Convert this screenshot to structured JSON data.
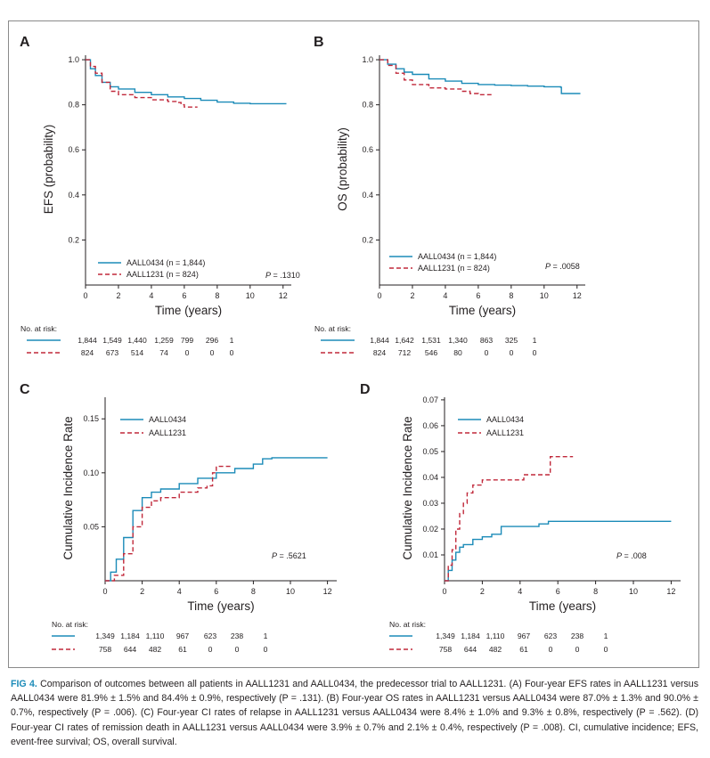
{
  "colors": {
    "series1": "#1b8bb8",
    "series2": "#c0283a",
    "text": "#231f20",
    "caption_label": "#1b8bb8"
  },
  "risk_label": "No. at risk:",
  "chart_data": [
    {
      "panel": "A",
      "type": "line",
      "xlabel": "Time (years)",
      "ylabel": "EFS (probability)",
      "xlim": [
        0,
        12.5
      ],
      "ylim": [
        0,
        1.02
      ],
      "xticks": [
        0,
        2,
        4,
        6,
        8,
        10,
        12
      ],
      "xtick_labels": [
        "0",
        "2",
        "4",
        "6",
        "8",
        "10",
        "12"
      ],
      "yticks": [
        0.2,
        0.4,
        0.6,
        0.8,
        1.0
      ],
      "ytick_labels": [
        "0.2",
        "0.4",
        "0.6",
        "0.8",
        "1.0"
      ],
      "p_value": ".1310",
      "series": [
        {
          "name": "AALL0434 (n = 1,844)",
          "style": "solid",
          "points": [
            [
              0,
              1.0
            ],
            [
              0.3,
              0.96
            ],
            [
              0.6,
              0.93
            ],
            [
              1,
              0.9
            ],
            [
              1.5,
              0.88
            ],
            [
              2,
              0.87
            ],
            [
              3,
              0.855
            ],
            [
              4,
              0.845
            ],
            [
              5,
              0.835
            ],
            [
              6,
              0.828
            ],
            [
              7,
              0.82
            ],
            [
              8,
              0.812
            ],
            [
              9,
              0.807
            ],
            [
              10,
              0.805
            ],
            [
              11,
              0.805
            ],
            [
              12.2,
              0.805
            ]
          ]
        },
        {
          "name": "AALL1231 (n = 824)",
          "style": "dashed",
          "points": [
            [
              0,
              1.0
            ],
            [
              0.3,
              0.97
            ],
            [
              0.6,
              0.94
            ],
            [
              1,
              0.9
            ],
            [
              1.5,
              0.86
            ],
            [
              2,
              0.845
            ],
            [
              3,
              0.832
            ],
            [
              4,
              0.822
            ],
            [
              5,
              0.815
            ],
            [
              5.5,
              0.81
            ],
            [
              5.8,
              0.8
            ],
            [
              6,
              0.79
            ],
            [
              6.8,
              0.79
            ]
          ]
        }
      ],
      "at_risk": {
        "series": [
          {
            "name": "AALL0434",
            "counts": [
              "1,844",
              "1,549",
              "1,440",
              "1,259",
              "799",
              "296",
              "1"
            ]
          },
          {
            "name": "AALL1231",
            "counts": [
              "824",
              "673",
              "514",
              "74",
              "0",
              "0",
              "0"
            ]
          }
        ]
      }
    },
    {
      "panel": "B",
      "type": "line",
      "xlabel": "Time (years)",
      "ylabel": "OS (probability)",
      "xlim": [
        0,
        12.5
      ],
      "ylim": [
        0,
        1.02
      ],
      "xticks": [
        0,
        2,
        4,
        6,
        8,
        10,
        12
      ],
      "xtick_labels": [
        "0",
        "2",
        "4",
        "6",
        "8",
        "10",
        "12"
      ],
      "yticks": [
        0.2,
        0.4,
        0.6,
        0.8,
        1.0
      ],
      "ytick_labels": [
        "0.2",
        "0.4",
        "0.6",
        "0.8",
        "1.0"
      ],
      "p_value": ".0058",
      "series": [
        {
          "name": "AALL0434 (n = 1,844)",
          "style": "solid",
          "points": [
            [
              0,
              1.0
            ],
            [
              0.5,
              0.98
            ],
            [
              1,
              0.96
            ],
            [
              1.5,
              0.945
            ],
            [
              2,
              0.935
            ],
            [
              3,
              0.915
            ],
            [
              4,
              0.905
            ],
            [
              5,
              0.895
            ],
            [
              6,
              0.89
            ],
            [
              7,
              0.887
            ],
            [
              8,
              0.885
            ],
            [
              9,
              0.883
            ],
            [
              10,
              0.88
            ],
            [
              11,
              0.878
            ],
            [
              11.05,
              0.85
            ],
            [
              12.2,
              0.85
            ]
          ]
        },
        {
          "name": "AALL1231 (n = 824)",
          "style": "dashed",
          "points": [
            [
              0,
              1.0
            ],
            [
              0.5,
              0.975
            ],
            [
              1,
              0.94
            ],
            [
              1.5,
              0.91
            ],
            [
              2,
              0.89
            ],
            [
              3,
              0.875
            ],
            [
              4,
              0.87
            ],
            [
              5,
              0.86
            ],
            [
              5.5,
              0.85
            ],
            [
              6,
              0.845
            ],
            [
              6.8,
              0.845
            ]
          ]
        }
      ],
      "at_risk": {
        "series": [
          {
            "name": "AALL0434",
            "counts": [
              "1,844",
              "1,642",
              "1,531",
              "1,340",
              "863",
              "325",
              "1"
            ]
          },
          {
            "name": "AALL1231",
            "counts": [
              "824",
              "712",
              "546",
              "80",
              "0",
              "0",
              "0"
            ]
          }
        ]
      }
    },
    {
      "panel": "C",
      "type": "line",
      "xlabel": "Time (years)",
      "ylabel": "Cumulative Incidence Rate",
      "xlim": [
        0,
        12.5
      ],
      "ylim": [
        0,
        0.17
      ],
      "xticks": [
        0,
        2,
        4,
        6,
        8,
        10,
        12
      ],
      "xtick_labels": [
        "0",
        "2",
        "4",
        "6",
        "8",
        "10",
        "12"
      ],
      "yticks": [
        0.05,
        0.1,
        0.15
      ],
      "ytick_labels": [
        "0.05",
        "0.10",
        "0.15"
      ],
      "p_value": ".5621",
      "series": [
        {
          "name": "AALL0434",
          "style": "solid",
          "points": [
            [
              0,
              0
            ],
            [
              0.3,
              0.008
            ],
            [
              0.6,
              0.02
            ],
            [
              1,
              0.04
            ],
            [
              1.5,
              0.065
            ],
            [
              2,
              0.077
            ],
            [
              2.5,
              0.082
            ],
            [
              3,
              0.085
            ],
            [
              4,
              0.09
            ],
            [
              5,
              0.095
            ],
            [
              6,
              0.1
            ],
            [
              7,
              0.104
            ],
            [
              8,
              0.108
            ],
            [
              8.5,
              0.113
            ],
            [
              9,
              0.114
            ],
            [
              12,
              0.114
            ]
          ]
        },
        {
          "name": "AALL1231",
          "style": "dashed",
          "points": [
            [
              0,
              0
            ],
            [
              0.5,
              0.005
            ],
            [
              1,
              0.025
            ],
            [
              1.5,
              0.05
            ],
            [
              2,
              0.068
            ],
            [
              2.5,
              0.074
            ],
            [
              3,
              0.077
            ],
            [
              4,
              0.082
            ],
            [
              5,
              0.086
            ],
            [
              5.5,
              0.088
            ],
            [
              5.8,
              0.1
            ],
            [
              6,
              0.106
            ],
            [
              6.9,
              0.106
            ]
          ]
        }
      ],
      "at_risk": {
        "series": [
          {
            "name": "AALL0434",
            "counts": [
              "1,349",
              "1,184",
              "1,110",
              "967",
              "623",
              "238",
              "1"
            ]
          },
          {
            "name": "AALL1231",
            "counts": [
              "758",
              "644",
              "482",
              "61",
              "0",
              "0",
              "0"
            ]
          }
        ]
      }
    },
    {
      "panel": "D",
      "type": "line",
      "xlabel": "Time (years)",
      "ylabel": "Cumulative Incidence Rate",
      "xlim": [
        0,
        12.5
      ],
      "ylim": [
        0,
        0.071
      ],
      "xticks": [
        0,
        2,
        4,
        6,
        8,
        10,
        12
      ],
      "xtick_labels": [
        "0",
        "2",
        "4",
        "6",
        "8",
        "10",
        "12"
      ],
      "yticks": [
        0.01,
        0.02,
        0.03,
        0.04,
        0.05,
        0.06,
        0.07
      ],
      "ytick_labels": [
        "0.01",
        "0.02",
        "0.03",
        "0.04",
        "0.05",
        "0.06",
        "0.07"
      ],
      "p_value": ".008",
      "series": [
        {
          "name": "AALL0434",
          "style": "solid",
          "points": [
            [
              0,
              0
            ],
            [
              0.2,
              0.004
            ],
            [
              0.4,
              0.008
            ],
            [
              0.6,
              0.011
            ],
            [
              0.8,
              0.013
            ],
            [
              1,
              0.014
            ],
            [
              1.5,
              0.016
            ],
            [
              2,
              0.017
            ],
            [
              2.5,
              0.018
            ],
            [
              3,
              0.021
            ],
            [
              4,
              0.021
            ],
            [
              5,
              0.022
            ],
            [
              5.5,
              0.023
            ],
            [
              6,
              0.023
            ],
            [
              12,
              0.023
            ]
          ]
        },
        {
          "name": "AALL1231",
          "style": "dashed",
          "points": [
            [
              0,
              0
            ],
            [
              0.2,
              0.006
            ],
            [
              0.4,
              0.012
            ],
            [
              0.6,
              0.02
            ],
            [
              0.8,
              0.026
            ],
            [
              1,
              0.03
            ],
            [
              1.2,
              0.034
            ],
            [
              1.5,
              0.037
            ],
            [
              2,
              0.039
            ],
            [
              3,
              0.039
            ],
            [
              4,
              0.039
            ],
            [
              4.2,
              0.041
            ],
            [
              5,
              0.041
            ],
            [
              5.5,
              0.041
            ],
            [
              5.6,
              0.048
            ],
            [
              6.8,
              0.048
            ]
          ]
        }
      ],
      "at_risk": {
        "series": [
          {
            "name": "AALL0434",
            "counts": [
              "1,349",
              "1,184",
              "1,110",
              "967",
              "623",
              "238",
              "1"
            ]
          },
          {
            "name": "AALL1231",
            "counts": [
              "758",
              "644",
              "482",
              "61",
              "0",
              "0",
              "0"
            ]
          }
        ]
      }
    }
  ],
  "caption": {
    "label": "FIG 4.",
    "text": " Comparison of outcomes between all patients in AALL1231 and AALL0434, the predecessor trial to AALL1231. (A) Four-year EFS rates in AALL1231 versus AALL0434 were 81.9% ± 1.5% and 84.4% ± 0.9%, respectively (P = .131). (B) Four-year OS rates in AALL1231 versus AALL0434 were 87.0% ± 1.3% and 90.0% ± 0.7%, respectively (P = .006). (C) Four-year CI rates of relapse in AALL1231 versus AALL0434 were 8.4% ± 1.0% and 9.3% ± 0.8%, respectively (P = .562). (D) Four-year CI rates of remission death in AALL1231 versus AALL0434 were 3.9% ± 0.7% and 2.1% ± 0.4%, respectively (P = .008). CI, cumulative incidence; EFS, event-free survival; OS, overall survival."
  }
}
